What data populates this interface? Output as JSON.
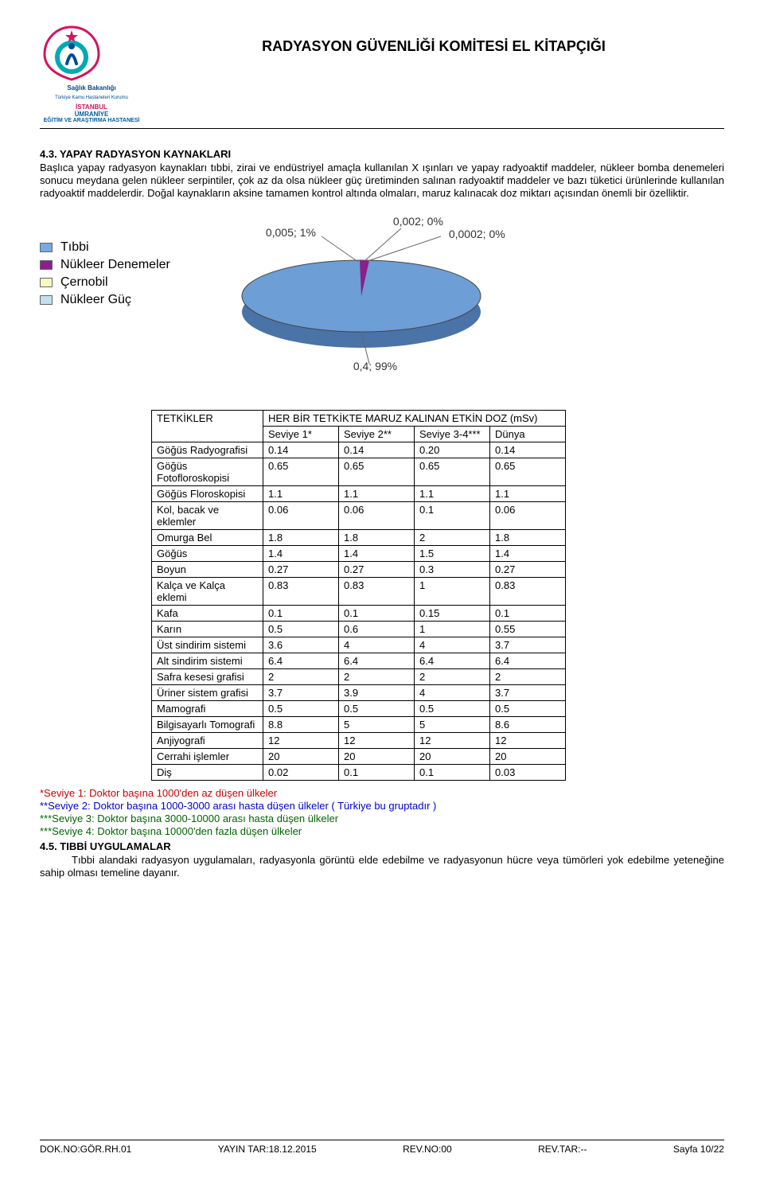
{
  "header": {
    "title": "RADYASYON GÜVENLİĞİ KOMİTESİ EL KİTAPÇIĞI",
    "logo_caption1": "Sağlık Bakanlığı",
    "logo_caption2": "Türkiye Kamu Hastaneleri Kurumu",
    "logo_line1": "İSTANBUL",
    "logo_line2": "ÜMRANİYE",
    "logo_line3": "EĞİTİM VE ARAŞTIRMA HASTANESİ"
  },
  "section": {
    "heading": "4.3. YAPAY RADYASYON KAYNAKLARI",
    "body": "Başlıca yapay radyasyon kaynakları tıbbi, zirai ve endüstriyel amaçla kullanılan X ışınları ve yapay radyoaktif maddeler, nükleer bomba denemeleri sonucu meydana gelen nükleer serpintiler, çok az da olsa nükleer güç üretiminden salınan radyoaktif maddeler ve bazı tüketici ürünlerinde kullanılan radyoaktif maddelerdir. Doğal kaynakların aksine tamamen kontrol altında olmaları, maruz kalınacak doz miktarı açısından önemli bir özelliktir."
  },
  "chart": {
    "type": "pie",
    "legend": [
      {
        "label": "Tıbbi",
        "color": "#7aa8e0"
      },
      {
        "label": "Nükleer Denemeler",
        "color": "#8b1f8b"
      },
      {
        "label": "Çernobil",
        "color": "#f7f7c2"
      },
      {
        "label": "Nükleer Güç",
        "color": "#c2e0f0"
      }
    ],
    "main_color": "#6d9ed6",
    "side_color": "#4a73a8",
    "accent_color": "#8b1f8b",
    "labels": {
      "top1": "0,002; 0%",
      "top2": "0,0002; 0%",
      "left": "0,005; 1%",
      "bottom": "0,4; 99%"
    }
  },
  "table": {
    "head_label": "TETKİKLER",
    "head_span": "HER BİR TETKİKTE MARUZ KALINAN ETKİN DOZ (mSv)",
    "sub1": "Seviye 1*",
    "sub2": "Seviye 2**",
    "sub3": "Seviye 3-4***",
    "sub4": "Dünya",
    "rows": [
      {
        "name": "Göğüs Radyografisi",
        "v": [
          "0.14",
          "0.14",
          "0.20",
          "0.14"
        ]
      },
      {
        "name": "Göğüs Fotofloroskopisi",
        "v": [
          "0.65",
          "0.65",
          "0.65",
          "0.65"
        ]
      },
      {
        "name": "Göğüs Floroskopisi",
        "v": [
          "1.1",
          "1.1",
          "1.1",
          "1.1"
        ]
      },
      {
        "name": "Kol, bacak ve eklemler",
        "v": [
          "0.06",
          "0.06",
          "0.1",
          "0.06"
        ]
      },
      {
        "name": "Omurga    Bel",
        "v": [
          "1.8",
          "1.8",
          "2",
          "1.8"
        ]
      },
      {
        "name": "Göğüs",
        "v": [
          "1.4",
          "1.4",
          "1.5",
          "1.4"
        ]
      },
      {
        "name": "Boyun",
        "v": [
          "0.27",
          "0.27",
          "0.3",
          "0.27"
        ]
      },
      {
        "name": "Kalça ve Kalça eklemi",
        "v": [
          "0.83",
          "0.83",
          "1",
          "0.83"
        ]
      },
      {
        "name": "Kafa",
        "v": [
          "0.1",
          "0.1",
          "0.15",
          "0.1"
        ]
      },
      {
        "name": "Karın",
        "v": [
          "0.5",
          "0.6",
          "1",
          "0.55"
        ]
      },
      {
        "name": "Üst sindirim sistemi",
        "v": [
          "3.6",
          "4",
          "4",
          "3.7"
        ]
      },
      {
        "name": "Alt sindirim sistemi",
        "v": [
          "6.4",
          "6.4",
          "6.4",
          "6.4"
        ]
      },
      {
        "name": "Safra kesesi grafisi",
        "v": [
          "2",
          "2",
          "2",
          "2"
        ]
      },
      {
        "name": "Üriner sistem grafisi",
        "v": [
          "3.7",
          "3.9",
          "4",
          "3.7"
        ]
      },
      {
        "name": "Mamografi",
        "v": [
          "0.5",
          "0.5",
          "0.5",
          "0.5"
        ]
      },
      {
        "name": "Bilgisayarlı Tomografi",
        "v": [
          "8.8",
          "5",
          "5",
          "8.6"
        ]
      },
      {
        "name": "Anjiyografi",
        "v": [
          "12",
          "12",
          "12",
          "12"
        ]
      },
      {
        "name": "Cerrahi işlemler",
        "v": [
          "20",
          "20",
          "20",
          "20"
        ]
      },
      {
        "name": "Diş",
        "v": [
          "0.02",
          "0.1",
          "0.1",
          "0.03"
        ]
      }
    ]
  },
  "footnotes": {
    "fn1": "*Seviye 1: Doktor başına 1000'den az düşen ülkeler",
    "fn2": "**Seviye 2: Doktor başına 1000-3000 arası hasta düşen ülkeler ( Türkiye bu gruptadır )",
    "fn3": "***Seviye 3: Doktor başına 3000-10000 arası hasta düşen ülkeler",
    "fn4": "***Seviye 4: Doktor başına 10000'den fazla düşen ülkeler"
  },
  "section2": {
    "heading": "4.5. TIBBİ UYGULAMALAR",
    "body": "Tıbbi alandaki radyasyon uygulamaları, radyasyonla görüntü elde edebilme ve radyasyonun hücre veya tümörleri yok edebilme yeteneğine sahip olması temeline dayanır."
  },
  "footer": {
    "dok": "DOK.NO:GÖR.RH.01",
    "yayin": "YAYIN TAR:18.12.2015",
    "revno": "REV.NO:00",
    "revtar": "REV.TAR:--",
    "page": "Sayfa 10/22"
  }
}
